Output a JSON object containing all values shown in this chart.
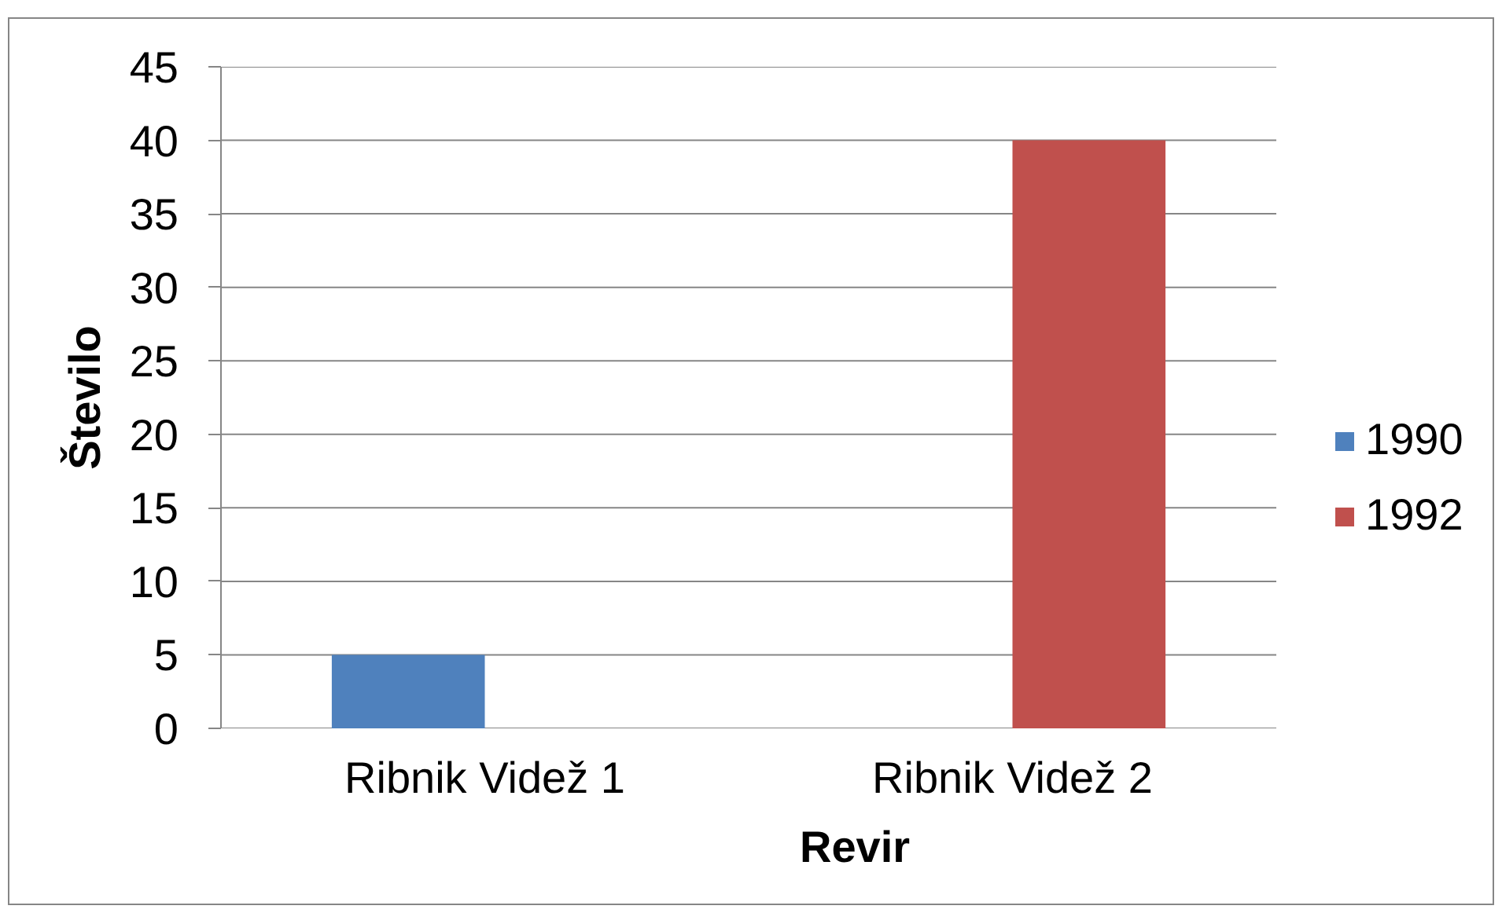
{
  "chart_data": {
    "type": "bar",
    "xlabel": "Revir",
    "ylabel": "Število",
    "categories": [
      "Ribnik Videž 1",
      "Ribnik Videž 2"
    ],
    "series": [
      {
        "name": "1990",
        "color": "#4f81bd",
        "values": [
          5,
          null
        ]
      },
      {
        "name": "1992",
        "color": "#c0504d",
        "values": [
          null,
          40
        ]
      }
    ],
    "ylim": [
      0,
      45
    ],
    "yticks": [
      0,
      5,
      10,
      15,
      20,
      25,
      30,
      35,
      40,
      45
    ],
    "grid": "y",
    "legend": "right"
  }
}
